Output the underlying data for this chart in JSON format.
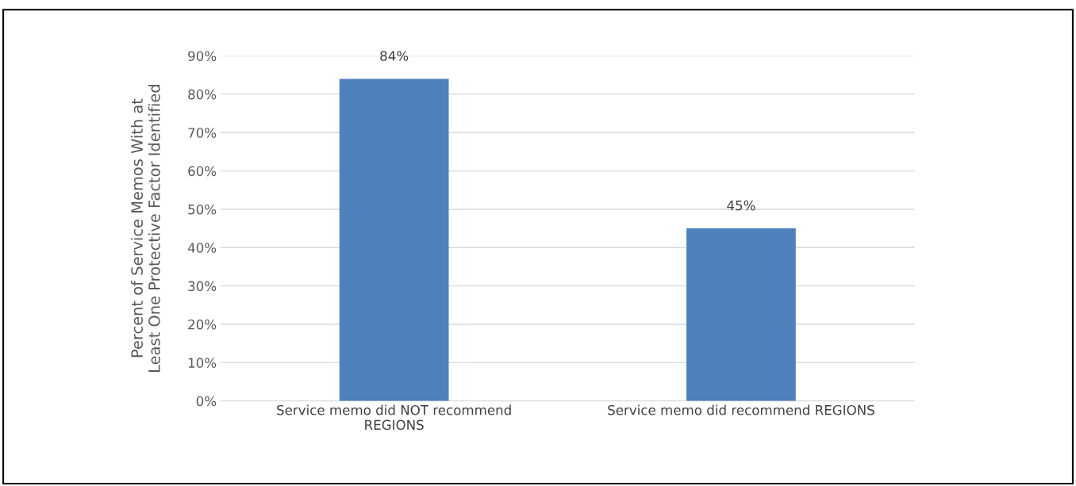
{
  "chart_data": {
    "type": "bar",
    "ylabel": "Percent of Service Memos With at\nLeast One Protective Factor Identified",
    "categories": [
      "Service memo did NOT recommend\nREGIONS",
      "Service memo did recommend REGIONS"
    ],
    "values": [
      84,
      45
    ],
    "value_labels": [
      "84%",
      "45%"
    ],
    "color": "#4f81bd",
    "ylim": [
      0,
      90
    ],
    "yticks": [
      {
        "value": 0,
        "label": "0%"
      },
      {
        "value": 10,
        "label": "10%"
      },
      {
        "value": 20,
        "label": "20%"
      },
      {
        "value": 30,
        "label": "30%"
      },
      {
        "value": 40,
        "label": "40%"
      },
      {
        "value": 50,
        "label": "50%"
      },
      {
        "value": 60,
        "label": "60%"
      },
      {
        "value": 70,
        "label": "70%"
      },
      {
        "value": 80,
        "label": "80%"
      },
      {
        "value": 90,
        "label": "90%"
      }
    ],
    "grid": "y"
  }
}
